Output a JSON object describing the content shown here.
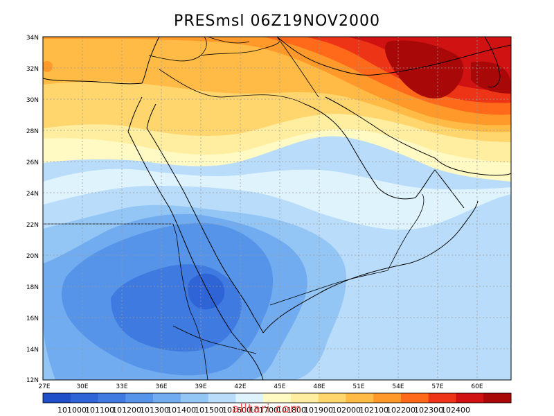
{
  "title": "PRESmsl  06Z19NOV2000",
  "colors": {
    "bands": [
      "#1e4ec8",
      "#2f64d6",
      "#3f7ae0",
      "#5594e8",
      "#72acf0",
      "#94c6f5",
      "#b8dcfa",
      "#dff3fc",
      "#fff9c4",
      "#ffeea0",
      "#ffd66e",
      "#ffbb45",
      "#ff9a2a",
      "#ff6a1a",
      "#ee3417",
      "#d01212",
      "#a80808"
    ]
  },
  "y_labels": [
    "34N",
    "32N",
    "30N",
    "28N",
    "26N",
    "24N",
    "22N",
    "20N",
    "18N",
    "16N",
    "14N",
    "12N"
  ],
  "x_labels": [
    "27E",
    "30E",
    "33E",
    "36E",
    "39E",
    "42E",
    "45E",
    "48E",
    "51E",
    "54E",
    "57E",
    "60E"
  ],
  "colorbar_labels": [
    "101000",
    "101100",
    "101200",
    "101300",
    "101400",
    "101500",
    "101600",
    "101700",
    "101800",
    "101900",
    "102000",
    "102100",
    "102200",
    "102300",
    "102400"
  ],
  "watermark": "alltari.com"
}
